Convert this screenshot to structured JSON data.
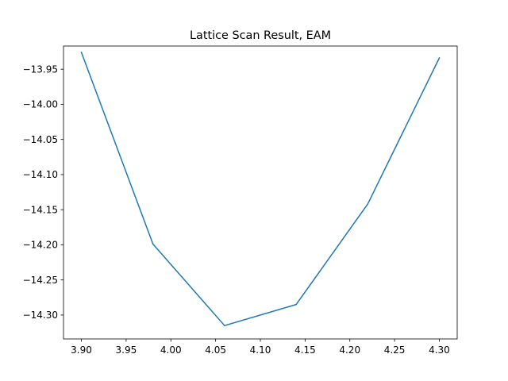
{
  "chart_data": {
    "type": "line",
    "title": "Lattice Scan Result, EAM",
    "xlabel": "",
    "ylabel": "",
    "x": [
      3.9,
      3.98,
      4.06,
      4.14,
      4.22,
      4.3
    ],
    "series": [
      {
        "values": [
          -13.926,
          -14.199,
          -14.315,
          -14.285,
          -14.142,
          -13.934
        ],
        "color": "#1f77b4"
      }
    ],
    "xlim": [
      3.88,
      4.32
    ],
    "ylim": [
      -14.334,
      -13.917
    ],
    "xticks": [
      3.9,
      3.95,
      4.0,
      4.05,
      4.1,
      4.15,
      4.2,
      4.25,
      4.3
    ],
    "xtick_labels": [
      "3.90",
      "3.95",
      "4.00",
      "4.05",
      "4.10",
      "4.15",
      "4.20",
      "4.25",
      "4.30"
    ],
    "yticks": [
      -13.95,
      -14.0,
      -14.05,
      -14.1,
      -14.15,
      -14.2,
      -14.25,
      -14.3
    ],
    "ytick_labels": [
      "−13.95",
      "−14.00",
      "−14.05",
      "−14.10",
      "−14.15",
      "−14.20",
      "−14.25",
      "−14.30"
    ],
    "grid": false,
    "legend": false
  }
}
